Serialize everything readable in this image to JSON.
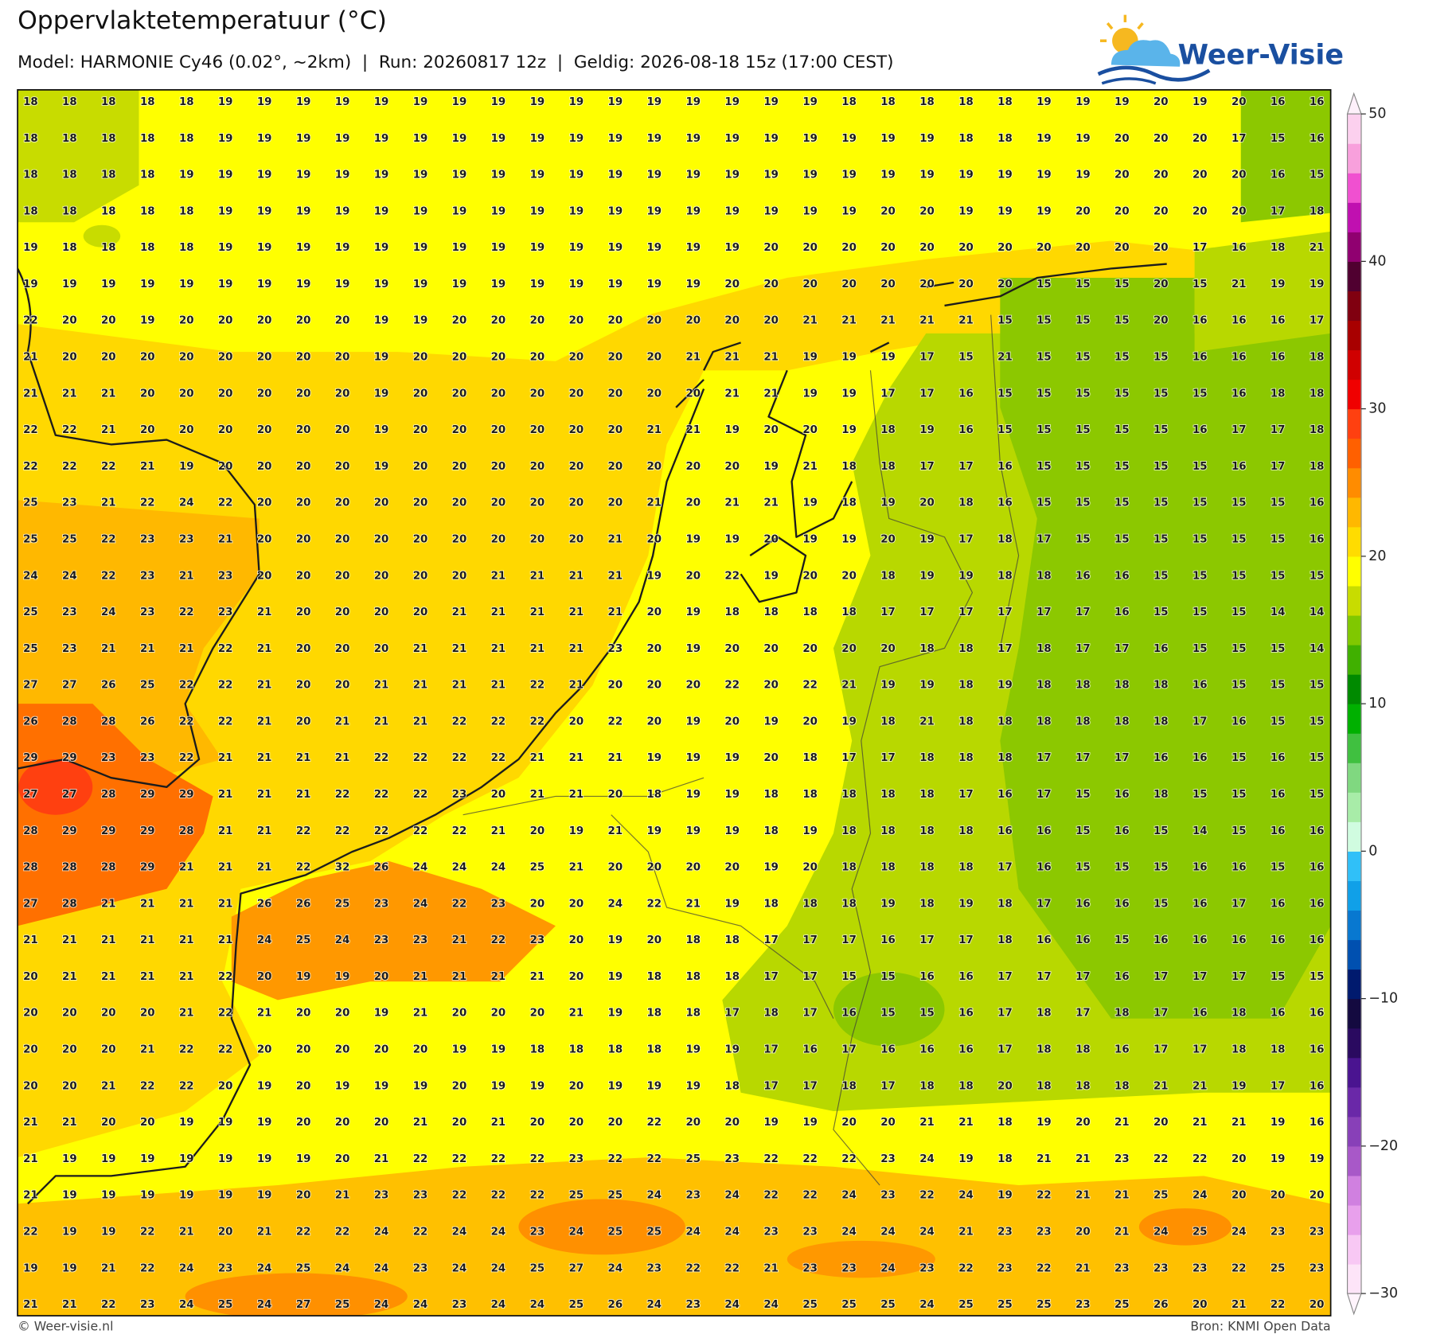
{
  "header": {
    "title": "Oppervlaktetemperatuur (°C)",
    "subtitle": "Model: HARMONIE Cy46 (0.02°, ~2km)  |  Run: 20260817 12z  |  Geldig: 2026-08-18 15z (17:00 CEST)"
  },
  "logo": {
    "text": "Weer-Visie"
  },
  "map": {
    "values": [
      [
        18,
        18,
        18,
        18,
        18,
        19,
        19,
        19,
        19,
        19,
        19,
        19,
        19,
        19,
        19,
        19,
        19,
        19,
        19,
        19,
        19,
        18,
        18,
        18,
        18,
        18,
        19,
        19,
        19,
        20,
        19,
        20,
        16,
        16
      ],
      [
        18,
        18,
        18,
        18,
        18,
        19,
        19,
        19,
        19,
        19,
        19,
        19,
        19,
        19,
        19,
        19,
        19,
        19,
        19,
        19,
        19,
        19,
        19,
        19,
        18,
        18,
        19,
        19,
        20,
        20,
        20,
        17,
        15,
        16
      ],
      [
        18,
        18,
        18,
        18,
        19,
        19,
        19,
        19,
        19,
        19,
        19,
        19,
        19,
        19,
        19,
        19,
        19,
        19,
        19,
        19,
        19,
        19,
        19,
        19,
        19,
        19,
        19,
        19,
        20,
        20,
        20,
        20,
        16,
        15
      ],
      [
        18,
        18,
        18,
        18,
        18,
        19,
        19,
        19,
        19,
        19,
        19,
        19,
        19,
        19,
        19,
        19,
        19,
        19,
        19,
        19,
        19,
        19,
        20,
        20,
        19,
        19,
        19,
        20,
        20,
        20,
        20,
        20,
        17,
        18
      ],
      [
        19,
        18,
        18,
        18,
        18,
        19,
        19,
        19,
        19,
        19,
        19,
        19,
        19,
        19,
        19,
        19,
        19,
        19,
        19,
        20,
        20,
        20,
        20,
        20,
        20,
        20,
        20,
        20,
        20,
        20,
        17,
        16,
        18,
        21
      ],
      [
        19,
        19,
        19,
        19,
        19,
        19,
        19,
        19,
        19,
        19,
        19,
        19,
        19,
        19,
        19,
        19,
        19,
        19,
        20,
        20,
        20,
        20,
        20,
        20,
        20,
        20,
        15,
        15,
        15,
        20,
        15,
        21,
        19,
        19
      ],
      [
        22,
        20,
        20,
        19,
        20,
        20,
        20,
        20,
        20,
        19,
        19,
        20,
        20,
        20,
        20,
        20,
        20,
        20,
        20,
        20,
        21,
        21,
        21,
        21,
        21,
        15,
        15,
        15,
        15,
        20,
        16,
        16,
        16,
        17
      ],
      [
        21,
        20,
        20,
        20,
        20,
        20,
        20,
        20,
        20,
        19,
        20,
        20,
        20,
        20,
        20,
        20,
        20,
        21,
        21,
        21,
        19,
        19,
        19,
        17,
        15,
        21,
        15,
        15,
        15,
        15,
        16,
        16,
        16,
        18
      ],
      [
        21,
        21,
        21,
        20,
        20,
        20,
        20,
        20,
        20,
        19,
        20,
        20,
        20,
        20,
        20,
        20,
        20,
        20,
        21,
        21,
        19,
        19,
        17,
        17,
        16,
        15,
        15,
        15,
        15,
        15,
        15,
        16,
        18,
        18
      ],
      [
        22,
        22,
        21,
        20,
        20,
        20,
        20,
        20,
        20,
        19,
        20,
        20,
        20,
        20,
        20,
        20,
        21,
        21,
        19,
        20,
        20,
        19,
        18,
        19,
        16,
        15,
        15,
        15,
        15,
        15,
        16,
        17,
        17,
        18
      ],
      [
        22,
        22,
        22,
        21,
        19,
        20,
        20,
        20,
        20,
        19,
        20,
        20,
        20,
        20,
        20,
        20,
        20,
        20,
        20,
        19,
        21,
        18,
        18,
        17,
        17,
        16,
        15,
        15,
        15,
        15,
        15,
        16,
        17,
        18
      ],
      [
        25,
        23,
        21,
        22,
        24,
        22,
        20,
        20,
        20,
        20,
        20,
        20,
        20,
        20,
        20,
        20,
        21,
        20,
        21,
        21,
        19,
        18,
        19,
        20,
        18,
        16,
        15,
        15,
        15,
        15,
        15,
        15,
        15,
        16
      ],
      [
        25,
        25,
        22,
        23,
        23,
        21,
        20,
        20,
        20,
        20,
        20,
        20,
        20,
        20,
        20,
        21,
        20,
        19,
        19,
        20,
        19,
        19,
        20,
        19,
        17,
        18,
        17,
        15,
        15,
        15,
        15,
        15,
        15,
        16
      ],
      [
        24,
        24,
        22,
        23,
        21,
        23,
        20,
        20,
        20,
        20,
        20,
        20,
        21,
        21,
        21,
        21,
        19,
        20,
        22,
        19,
        20,
        20,
        18,
        19,
        19,
        18,
        18,
        16,
        16,
        15,
        15,
        15,
        15,
        15
      ],
      [
        25,
        23,
        24,
        23,
        22,
        23,
        21,
        20,
        20,
        20,
        20,
        21,
        21,
        21,
        21,
        21,
        20,
        19,
        18,
        18,
        18,
        18,
        17,
        17,
        17,
        17,
        17,
        17,
        16,
        15,
        15,
        15,
        14,
        14
      ],
      [
        25,
        23,
        21,
        21,
        21,
        22,
        21,
        20,
        20,
        20,
        21,
        21,
        21,
        21,
        21,
        23,
        20,
        19,
        20,
        20,
        20,
        20,
        20,
        18,
        18,
        17,
        18,
        17,
        17,
        16,
        15,
        15,
        15,
        14
      ],
      [
        27,
        27,
        26,
        25,
        22,
        22,
        21,
        20,
        20,
        21,
        21,
        21,
        21,
        22,
        21,
        20,
        20,
        20,
        22,
        20,
        22,
        21,
        19,
        19,
        18,
        19,
        18,
        18,
        18,
        18,
        16,
        15,
        15,
        15
      ],
      [
        26,
        28,
        28,
        26,
        22,
        22,
        21,
        20,
        21,
        21,
        21,
        22,
        22,
        22,
        20,
        22,
        20,
        19,
        20,
        19,
        20,
        19,
        18,
        21,
        18,
        18,
        18,
        18,
        18,
        18,
        17,
        16,
        15,
        15
      ],
      [
        29,
        29,
        23,
        23,
        22,
        21,
        21,
        21,
        21,
        22,
        22,
        22,
        22,
        21,
        21,
        21,
        19,
        19,
        19,
        20,
        18,
        17,
        17,
        18,
        18,
        18,
        17,
        17,
        17,
        16,
        16,
        15,
        16,
        15
      ],
      [
        27,
        27,
        28,
        29,
        29,
        21,
        21,
        21,
        22,
        22,
        22,
        23,
        20,
        21,
        21,
        20,
        18,
        19,
        19,
        18,
        18,
        18,
        18,
        18,
        17,
        16,
        17,
        15,
        16,
        18,
        15,
        15,
        16,
        15
      ],
      [
        28,
        29,
        29,
        29,
        28,
        21,
        21,
        22,
        22,
        22,
        22,
        22,
        21,
        20,
        19,
        21,
        19,
        19,
        19,
        18,
        19,
        18,
        18,
        18,
        18,
        16,
        16,
        15,
        16,
        15,
        14,
        15,
        16,
        16
      ],
      [
        28,
        28,
        28,
        29,
        21,
        21,
        21,
        22,
        32,
        26,
        24,
        24,
        24,
        25,
        21,
        20,
        20,
        20,
        20,
        19,
        20,
        18,
        18,
        18,
        18,
        17,
        16,
        15,
        15,
        15,
        16,
        16,
        15,
        16
      ],
      [
        27,
        28,
        21,
        21,
        21,
        21,
        26,
        26,
        25,
        23,
        24,
        22,
        23,
        20,
        20,
        24,
        22,
        21,
        19,
        18,
        18,
        18,
        19,
        18,
        19,
        18,
        17,
        16,
        16,
        15,
        16,
        17,
        16,
        16
      ],
      [
        21,
        21,
        21,
        21,
        21,
        21,
        24,
        25,
        24,
        23,
        23,
        21,
        22,
        23,
        20,
        19,
        20,
        18,
        18,
        17,
        17,
        17,
        16,
        17,
        17,
        18,
        16,
        16,
        15,
        16,
        16,
        16,
        16,
        16
      ],
      [
        20,
        21,
        21,
        21,
        21,
        22,
        20,
        19,
        19,
        20,
        21,
        21,
        21,
        21,
        20,
        19,
        18,
        18,
        18,
        17,
        17,
        15,
        15,
        16,
        16,
        17,
        17,
        17,
        16,
        17,
        17,
        17,
        15,
        15
      ],
      [
        20,
        20,
        20,
        20,
        21,
        22,
        21,
        20,
        20,
        19,
        21,
        20,
        20,
        20,
        21,
        19,
        18,
        18,
        17,
        18,
        17,
        16,
        15,
        15,
        16,
        17,
        18,
        17,
        18,
        17,
        16,
        18,
        16,
        16
      ],
      [
        20,
        20,
        20,
        21,
        22,
        22,
        20,
        20,
        20,
        20,
        20,
        19,
        19,
        18,
        18,
        18,
        18,
        19,
        19,
        17,
        16,
        17,
        16,
        16,
        16,
        17,
        18,
        18,
        16,
        17,
        17,
        18,
        18,
        16
      ],
      [
        20,
        20,
        21,
        22,
        22,
        20,
        19,
        20,
        19,
        19,
        19,
        20,
        19,
        19,
        20,
        19,
        19,
        19,
        18,
        17,
        17,
        18,
        17,
        18,
        18,
        20,
        18,
        18,
        18,
        21,
        21,
        19,
        17,
        16
      ],
      [
        21,
        21,
        20,
        20,
        19,
        19,
        19,
        20,
        20,
        20,
        21,
        20,
        21,
        20,
        20,
        20,
        22,
        20,
        20,
        19,
        19,
        20,
        20,
        21,
        21,
        18,
        19,
        20,
        21,
        20,
        21,
        21,
        19,
        16
      ],
      [
        21,
        19,
        19,
        19,
        19,
        19,
        19,
        19,
        20,
        21,
        22,
        22,
        22,
        22,
        23,
        22,
        22,
        25,
        23,
        22,
        22,
        22,
        23,
        24,
        19,
        18,
        21,
        21,
        23,
        22,
        22,
        20,
        19,
        19
      ],
      [
        21,
        19,
        19,
        19,
        19,
        19,
        19,
        20,
        21,
        23,
        23,
        22,
        22,
        22,
        25,
        25,
        24,
        23,
        24,
        22,
        22,
        24,
        23,
        22,
        24,
        19,
        22,
        21,
        21,
        25,
        24,
        20,
        20,
        20
      ],
      [
        22,
        19,
        19,
        22,
        21,
        20,
        21,
        22,
        22,
        24,
        22,
        24,
        24,
        23,
        24,
        25,
        25,
        24,
        24,
        23,
        23,
        24,
        24,
        24,
        21,
        23,
        23,
        20,
        21,
        24,
        25,
        24,
        23,
        23
      ],
      [
        19,
        19,
        21,
        22,
        24,
        23,
        24,
        25,
        24,
        24,
        23,
        24,
        24,
        25,
        27,
        24,
        23,
        22,
        22,
        21,
        23,
        23,
        24,
        23,
        22,
        23,
        22,
        21,
        23,
        23,
        23,
        22,
        25,
        23
      ],
      [
        21,
        21,
        22,
        23,
        24,
        25,
        24,
        27,
        25,
        24,
        24,
        23,
        24,
        24,
        25,
        26,
        24,
        23,
        24,
        24,
        25,
        25,
        25,
        24,
        25,
        25,
        25,
        23,
        25,
        26,
        20,
        21,
        22,
        20
      ]
    ]
  },
  "colorbar": {
    "ticks": [
      50,
      40,
      30,
      20,
      10,
      0,
      {
        "value": -10,
        "label": "−10"
      },
      {
        "value": -20,
        "label": "−20"
      },
      {
        "value": -30,
        "label": "−30"
      }
    ],
    "colors": [
      "#fde4f8",
      "#f8c8f4",
      "#e8a0ec",
      "#d080e0",
      "#a858c8",
      "#8840b8",
      "#6a28a8",
      "#4a1490",
      "#2a0a60",
      "#140a40",
      "#001a6e",
      "#0050b0",
      "#0878d0",
      "#10a0e8",
      "#30c0f8",
      "#d0fce0",
      "#a8eca8",
      "#80d880",
      "#40c040",
      "#00b000",
      "#008a00",
      "#40b000",
      "#80c800",
      "#c8dc00",
      "#ffff00",
      "#ffdc00",
      "#ffb800",
      "#ff8c00",
      "#ff6000",
      "#ff4010",
      "#f00000",
      "#d00000",
      "#a80000",
      "#800010",
      "#500030",
      "#900070",
      "#c010b0",
      "#f050d0",
      "#f8a0dc",
      "#fcd0ee"
    ]
  },
  "footer": {
    "left": "© Weer-visie.nl",
    "right": "Bron: KNMI Open Data"
  }
}
